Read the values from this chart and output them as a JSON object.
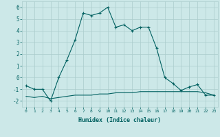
{
  "xlabel": "Humidex (Indice chaleur)",
  "xlim": [
    -0.5,
    23.5
  ],
  "ylim": [
    -2.5,
    6.5
  ],
  "yticks": [
    -2,
    -1,
    0,
    1,
    2,
    3,
    4,
    5,
    6
  ],
  "xticks": [
    0,
    1,
    2,
    3,
    4,
    5,
    6,
    7,
    8,
    9,
    10,
    11,
    12,
    13,
    14,
    15,
    16,
    17,
    18,
    19,
    20,
    21,
    22,
    23
  ],
  "xtick_labels": [
    "0",
    "1",
    "2",
    "3",
    "4",
    "5",
    "6",
    "7",
    "8",
    "9",
    "10",
    "11",
    "12",
    "13",
    "14",
    "15",
    "16",
    "17",
    "18",
    "19",
    "20",
    "21",
    "22",
    "23"
  ],
  "line_color": "#006060",
  "bg_color": "#cce8e8",
  "grid_color": "#aacccc",
  "series1_x": [
    0,
    1,
    2,
    3,
    4,
    5,
    6,
    7,
    8,
    9,
    10,
    11,
    12,
    13,
    14,
    15,
    16,
    17,
    18,
    19,
    20,
    21,
    22,
    23
  ],
  "series1_y": [
    -0.7,
    -1.0,
    -1.0,
    -2.0,
    0.0,
    1.5,
    3.2,
    5.5,
    5.3,
    5.5,
    6.0,
    4.3,
    4.5,
    4.0,
    4.3,
    4.3,
    2.5,
    0.0,
    -0.5,
    -1.1,
    -0.8,
    -0.6,
    -1.5,
    -1.5
  ],
  "series2_x": [
    0,
    1,
    2,
    3,
    4,
    5,
    6,
    7,
    8,
    9,
    10,
    11,
    12,
    13,
    14,
    15,
    16,
    17,
    18,
    19,
    20,
    21,
    22,
    23
  ],
  "series2_y": [
    -1.6,
    -1.7,
    -1.6,
    -1.8,
    -1.7,
    -1.6,
    -1.5,
    -1.5,
    -1.5,
    -1.4,
    -1.4,
    -1.3,
    -1.3,
    -1.3,
    -1.2,
    -1.2,
    -1.2,
    -1.2,
    -1.2,
    -1.2,
    -1.2,
    -1.2,
    -1.3,
    -1.5
  ]
}
